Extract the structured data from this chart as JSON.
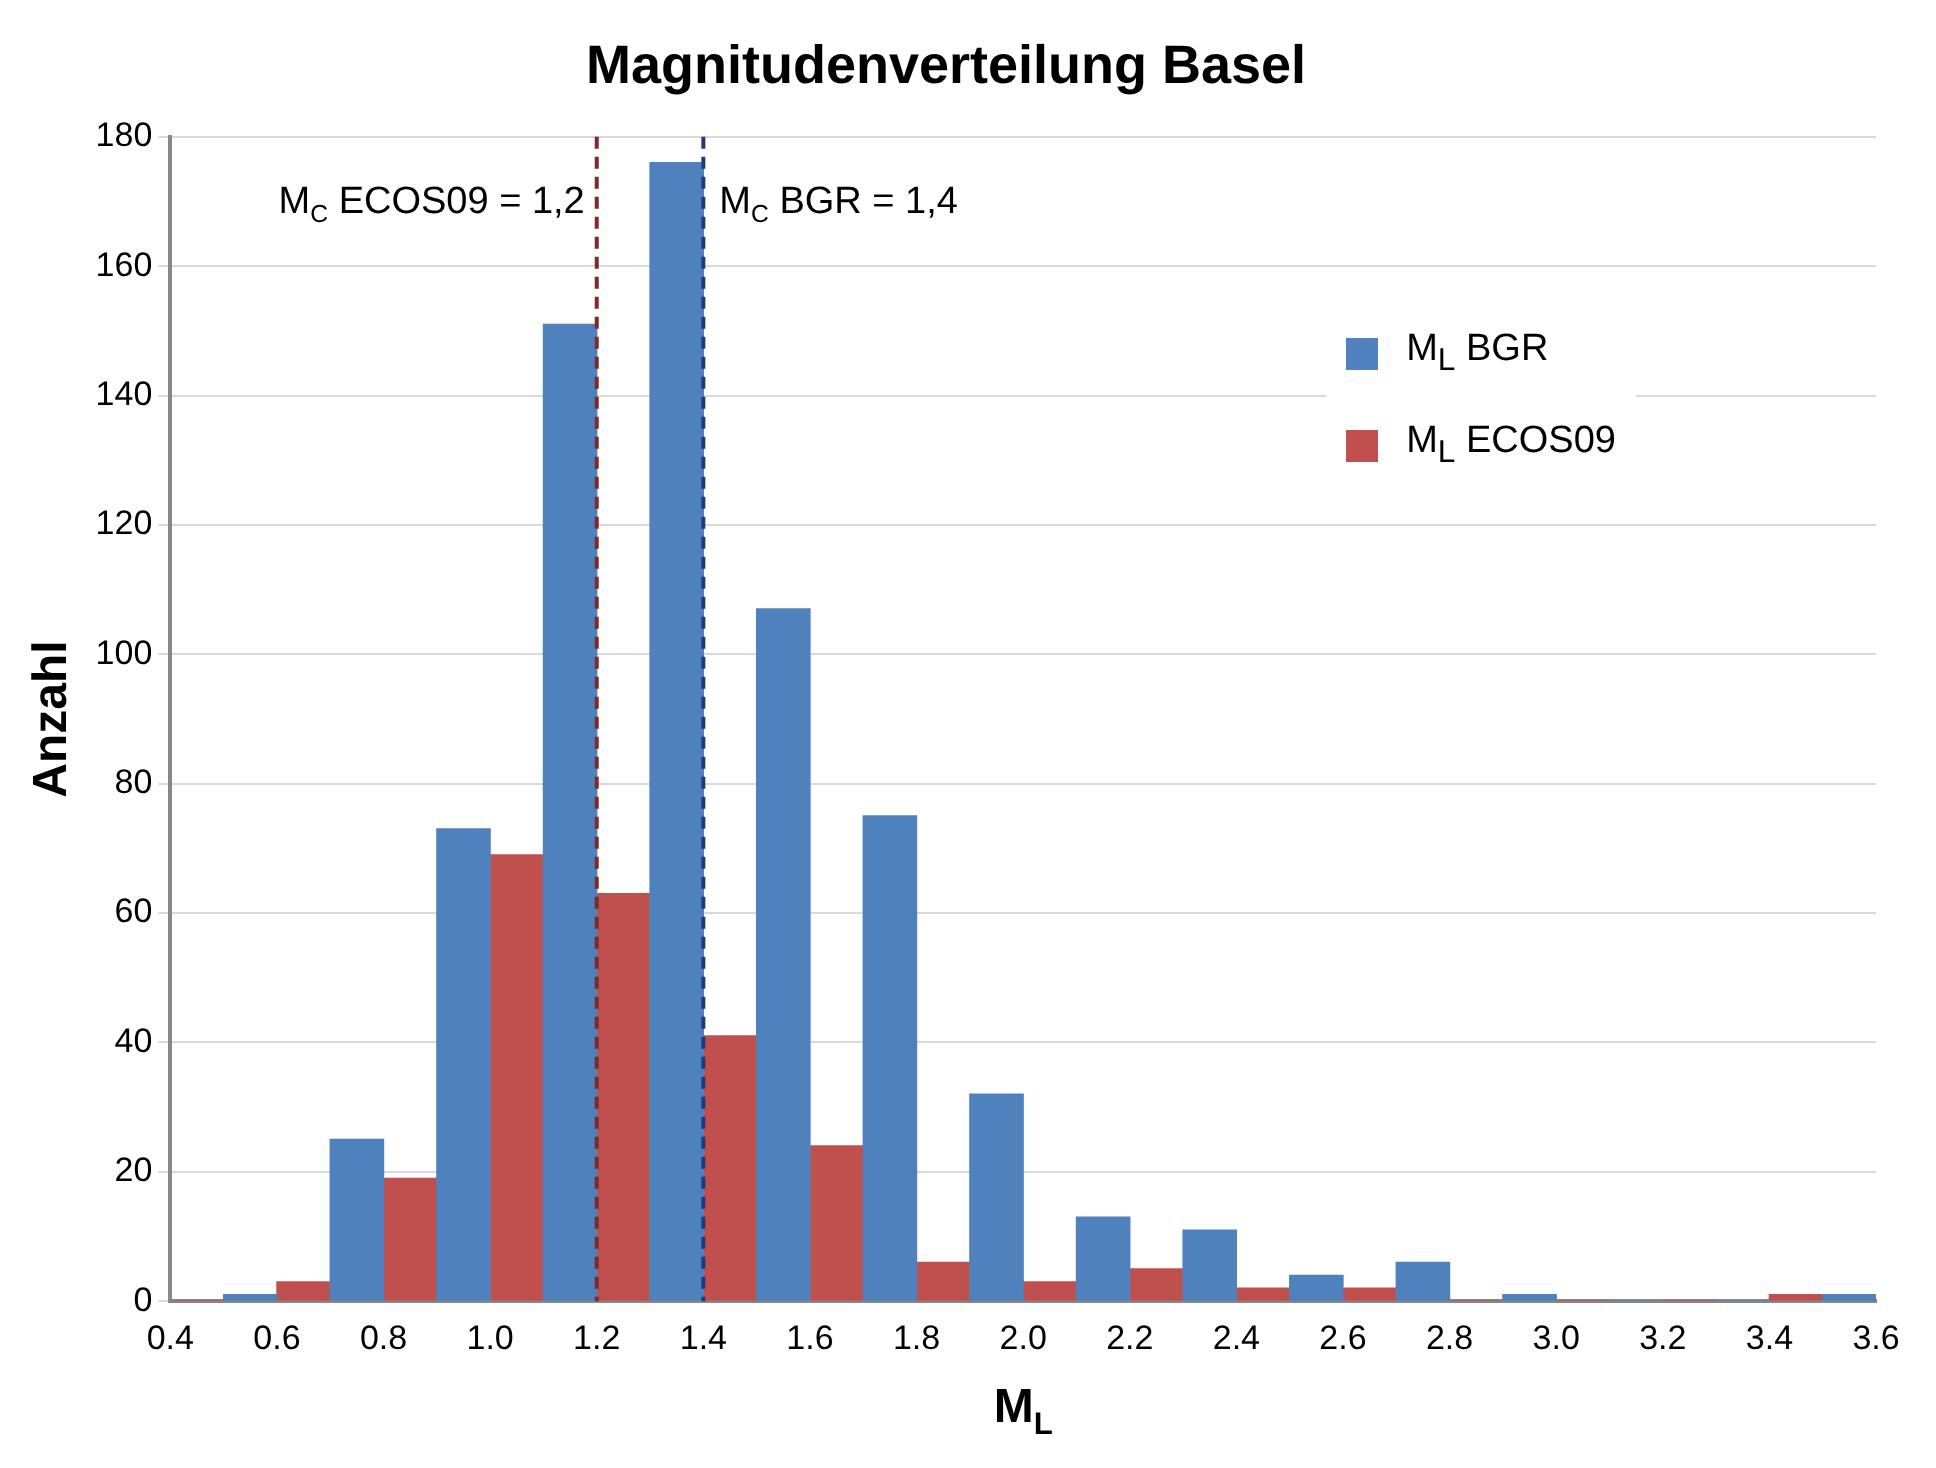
{
  "chart_data": {
    "type": "histogram",
    "title": "Magnitudenverteilung Basel",
    "xlabel": "M$_{L}$",
    "ylabel": "Anzahl",
    "bins": [
      0.4,
      0.6,
      0.8,
      1.0,
      1.2,
      1.4,
      1.6,
      1.8,
      2.0,
      2.2,
      2.4,
      2.6,
      2.8,
      3.0,
      3.2,
      3.4,
      3.6
    ],
    "series": [
      {
        "name": "M$_{L}$ BGR",
        "color": "#4f81bd",
        "values": [
          1,
          25,
          73,
          151,
          176,
          107,
          75,
          32,
          13,
          11,
          4,
          6,
          1,
          0,
          0,
          1
        ]
      },
      {
        "name": "M$_{L}$ ECOS09",
        "color": "#c0504d",
        "values": [
          0,
          3,
          19,
          69,
          63,
          41,
          24,
          6,
          3,
          5,
          2,
          2,
          0,
          0,
          0,
          1
        ]
      }
    ],
    "xlim": [
      0.4,
      3.6
    ],
    "xticks": [
      0.4,
      0.6,
      0.8,
      {
        "value": 1,
        "label": "1.0"
      },
      1.2,
      1.4,
      1.6,
      1.8,
      {
        "value": 2,
        "label": "2.0"
      },
      2.2,
      2.4,
      2.6,
      2.8,
      {
        "value": 3,
        "label": "3.0"
      },
      3.2,
      3.4,
      3.6
    ],
    "ylim": [
      0,
      180
    ],
    "yticks": [
      0,
      20,
      40,
      60,
      80,
      100,
      120,
      140,
      160,
      180
    ],
    "ref_lines": [
      {
        "axis": "x",
        "value": 1.2,
        "label": "M$_{C}$ ECOS09 = 1,2",
        "color": "#7f2a2a",
        "line_style": "dashed"
      },
      {
        "axis": "x",
        "value": 1.4,
        "label": "M$_{C}$ BGR = 1,4",
        "color": "#1f3a7a",
        "line_style": "dashed"
      }
    ],
    "grid": "y",
    "legend": "top right"
  }
}
